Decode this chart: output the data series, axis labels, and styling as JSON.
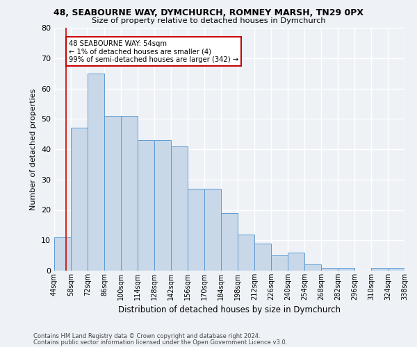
{
  "title_line1": "48, SEABOURNE WAY, DYMCHURCH, ROMNEY MARSH, TN29 0PX",
  "title_line2": "Size of property relative to detached houses in Dymchurch",
  "xlabel": "Distribution of detached houses by size in Dymchurch",
  "ylabel": "Number of detached properties",
  "categories": [
    "44sqm",
    "58sqm",
    "72sqm",
    "86sqm",
    "100sqm",
    "114sqm",
    "128sqm",
    "142sqm",
    "156sqm",
    "170sqm",
    "184sqm",
    "198sqm",
    "212sqm",
    "226sqm",
    "240sqm",
    "254sqm",
    "268sqm",
    "282sqm",
    "296sqm",
    "310sqm",
    "324sqm"
  ],
  "heights": [
    11,
    47,
    65,
    51,
    51,
    43,
    43,
    41,
    27,
    27,
    19,
    12,
    9,
    5,
    6,
    2,
    1,
    1,
    0,
    1,
    1
  ],
  "bar_color": "#c8d8e8",
  "bar_edge_color": "#5b9bd5",
  "annotation_text": "48 SEABOURNE WAY: 54sqm\n← 1% of detached houses are smaller (4)\n99% of semi-detached houses are larger (342) →",
  "annotation_box_color": "#ffffff",
  "annotation_box_edge": "#cc0000",
  "vline_color": "#cc0000",
  "ylim": [
    0,
    80
  ],
  "yticks": [
    0,
    10,
    20,
    30,
    40,
    50,
    60,
    70,
    80
  ],
  "footer_line1": "Contains HM Land Registry data © Crown copyright and database right 2024.",
  "footer_line2": "Contains public sector information licensed under the Open Government Licence v3.0.",
  "bg_color": "#eef2f7",
  "grid_color": "#ffffff"
}
